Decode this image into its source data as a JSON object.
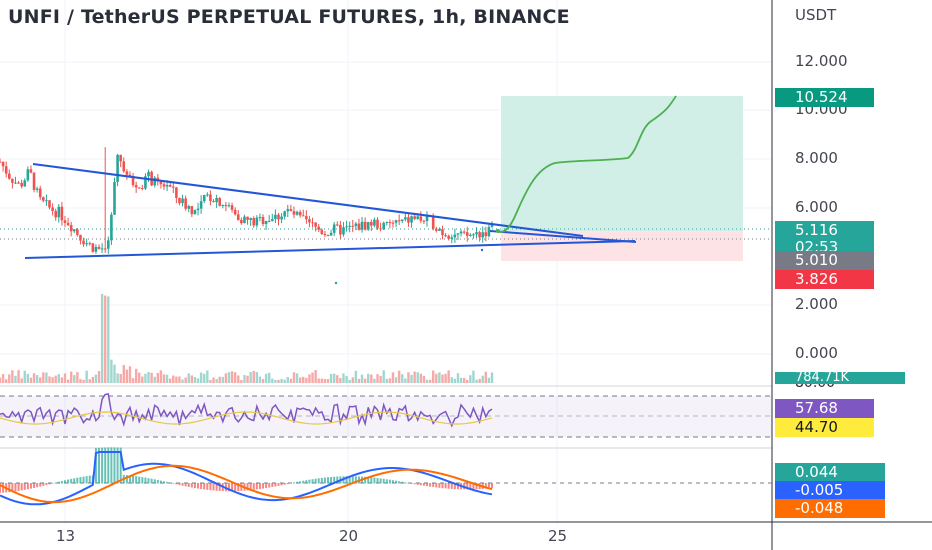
{
  "title": "UNFI / TetherUS PERPETUAL FUTURES, 1h, BINANCE",
  "currency": "USDT",
  "chart_data": {
    "type": "candlestick",
    "symbol": "UNFI / TetherUS PERPETUAL FUTURES",
    "interval": "1h",
    "exchange": "BINANCE",
    "x_ticks": [
      "13",
      "20",
      "25"
    ],
    "price_axis": {
      "ticks": [
        "12.000",
        "10.000",
        "8.000",
        "6.000",
        "2.000",
        "0.000"
      ],
      "ylim": [
        -0.5,
        12.5
      ]
    },
    "price_series": {
      "name": "UNFI/USDT",
      "approx_close_path": [
        7.9,
        7.3,
        6.9,
        7.5,
        6.3,
        6.0,
        5.8,
        5.4,
        4.9,
        4.5,
        4.3,
        4.4,
        8.3,
        7.2,
        6.8,
        7.3,
        6.9,
        7.0,
        6.4,
        6.1,
        5.8,
        6.5,
        6.4,
        6.1,
        5.7,
        5.5,
        5.4,
        5.6,
        5.6,
        5.9,
        5.7,
        5.4,
        5.2,
        5.0,
        5.1,
        5.1,
        5.2,
        5.3,
        5.4,
        5.2,
        5.4,
        5.4,
        5.6,
        5.5,
        5.4,
        5.0,
        4.95,
        4.8,
        4.9,
        5.0,
        5.116
      ]
    },
    "trendlines": [
      {
        "name": "upper",
        "from": [
          0.05,
          7.8
        ],
        "to": [
          0.73,
          4.8
        ]
      },
      {
        "name": "lower",
        "from": [
          0.05,
          3.95
        ],
        "to": [
          0.78,
          4.65
        ]
      }
    ],
    "projection_path": [
      [
        0.64,
        5.0
      ],
      [
        0.67,
        5.3
      ],
      [
        0.71,
        7.0
      ],
      [
        0.74,
        7.9
      ],
      [
        0.82,
        7.9
      ],
      [
        0.84,
        9.5
      ],
      [
        0.87,
        10.524
      ]
    ],
    "long_position": {
      "entry": 5.01,
      "target": 10.524,
      "stop": 3.826
    },
    "price_labels": [
      {
        "value": "10.524",
        "kind": "target",
        "color": "#089981"
      },
      {
        "value": "5.116",
        "kind": "last",
        "color": "#26a69a"
      },
      {
        "value": "02:53",
        "kind": "countdown",
        "color": "#26a69a"
      },
      {
        "value": "5.010",
        "kind": "entry",
        "color": "#787b86"
      },
      {
        "value": "3.826",
        "kind": "stop",
        "color": "#f23645"
      }
    ],
    "volume": {
      "last_label": "784.71K",
      "spike_positions": [
        0.14,
        0.145
      ]
    },
    "rsi": {
      "label_top": "80.00",
      "rsi_value": "57.68",
      "ma_value": "44.70",
      "colors": {
        "rsi": "#7e57c2",
        "ma": "#ffeb3b"
      },
      "levels": [
        70,
        50,
        30
      ]
    },
    "macd": {
      "histogram": "0.044",
      "macd": "-0.005",
      "signal": "-0.048",
      "colors": {
        "histogram": "#26a69a",
        "macd": "#2962ff",
        "signal": "#ff6d00"
      }
    }
  }
}
